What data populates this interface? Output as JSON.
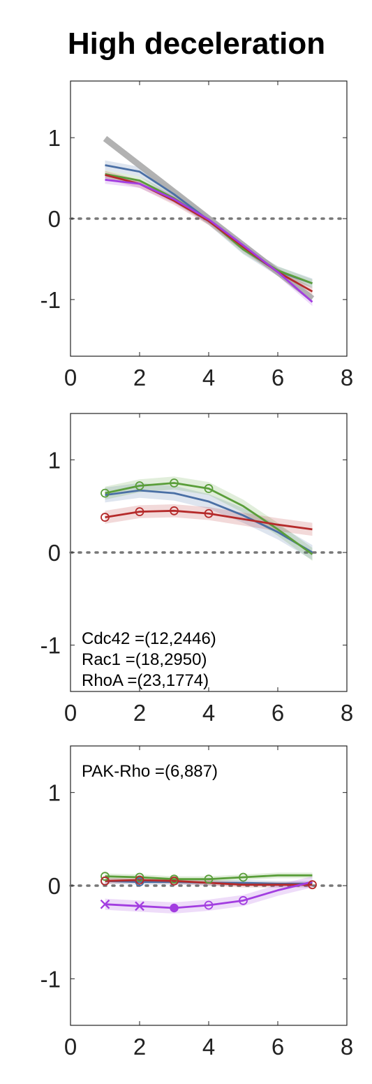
{
  "title": "High deceleration",
  "colors": {
    "gray": "#aaaaaa",
    "blue": "#4a6fa5",
    "green": "#5a9e3a",
    "red": "#b52a2a",
    "purple": "#a23de0",
    "zeroline": "#777777"
  },
  "chart_data": [
    {
      "type": "line",
      "xlim": [
        0,
        8
      ],
      "ylim": [
        -1.7,
        1.7
      ],
      "xticks": [
        "0",
        "2",
        "4",
        "6",
        "8"
      ],
      "yticks": [
        "1",
        "0",
        "-1"
      ],
      "annotations": [],
      "series": [
        {
          "color": "gray",
          "x": [
            1,
            2,
            3,
            4,
            5,
            6,
            7
          ],
          "values": [
            0.99,
            0.66,
            0.33,
            0.0,
            -0.33,
            -0.66,
            -0.99
          ],
          "band": 0.0,
          "thick": true
        },
        {
          "color": "blue",
          "x": [
            1,
            2,
            3,
            4,
            5,
            6,
            7
          ],
          "values": [
            0.66,
            0.58,
            0.3,
            -0.02,
            -0.38,
            -0.65,
            -0.8
          ],
          "band": 0.06
        },
        {
          "color": "green",
          "x": [
            1,
            2,
            3,
            4,
            5,
            6,
            7
          ],
          "values": [
            0.55,
            0.47,
            0.25,
            -0.02,
            -0.38,
            -0.64,
            -0.8
          ],
          "band": 0.05
        },
        {
          "color": "red",
          "x": [
            1,
            2,
            3,
            4,
            5,
            6,
            7
          ],
          "values": [
            0.54,
            0.43,
            0.22,
            -0.03,
            -0.35,
            -0.66,
            -0.9
          ],
          "band": 0.05
        },
        {
          "color": "purple",
          "x": [
            1,
            2,
            3,
            4,
            5,
            6,
            7
          ],
          "values": [
            0.48,
            0.43,
            0.24,
            -0.01,
            -0.33,
            -0.66,
            -1.03
          ],
          "band": 0.05
        }
      ]
    },
    {
      "type": "line",
      "xlim": [
        0,
        8
      ],
      "ylim": [
        -1.5,
        1.5
      ],
      "xticks": [
        "0",
        "2",
        "4",
        "6",
        "8"
      ],
      "yticks": [
        "1",
        "0",
        "-1"
      ],
      "annotations": [
        "Cdc42 =(12,2446)",
        "Rac1 =(18,2950)",
        "RhoA =(23,1774)"
      ],
      "series": [
        {
          "color": "blue",
          "x": [
            1,
            2,
            3,
            4,
            5,
            6,
            7
          ],
          "values": [
            0.62,
            0.67,
            0.64,
            0.55,
            0.4,
            0.22,
            0.0
          ],
          "band": 0.08
        },
        {
          "color": "green",
          "x": [
            1,
            2,
            3,
            4,
            5,
            6,
            7
          ],
          "values": [
            0.64,
            0.72,
            0.75,
            0.69,
            0.5,
            0.25,
            -0.02
          ],
          "band": 0.07,
          "markers": {
            "x": [
              1,
              2,
              3,
              4
            ],
            "symbol": "circle"
          }
        },
        {
          "color": "red",
          "x": [
            1,
            2,
            3,
            4,
            5,
            6,
            7
          ],
          "values": [
            0.38,
            0.44,
            0.45,
            0.42,
            0.36,
            0.3,
            0.25
          ],
          "band": 0.07,
          "markers": {
            "x": [
              1,
              2,
              3,
              4
            ],
            "symbol": "circle"
          }
        }
      ]
    },
    {
      "type": "line",
      "xlim": [
        0,
        8
      ],
      "ylim": [
        -1.5,
        1.5
      ],
      "xticks": [
        "0",
        "2",
        "4",
        "6",
        "8"
      ],
      "yticks": [
        "1",
        "0",
        "-1"
      ],
      "annotations": [
        "PAK-Rho =(6,887)"
      ],
      "series": [
        {
          "color": "blue",
          "x": [
            1,
            2,
            3,
            4,
            5,
            6,
            7
          ],
          "values": [
            0.05,
            0.04,
            0.04,
            0.03,
            0.03,
            0.02,
            0.02
          ],
          "band": 0.03,
          "markers": {
            "x": [
              1,
              2
            ],
            "symbol": "circle"
          }
        },
        {
          "color": "green",
          "x": [
            1,
            2,
            3,
            4,
            5,
            6,
            7
          ],
          "values": [
            0.1,
            0.09,
            0.07,
            0.07,
            0.09,
            0.11,
            0.11
          ],
          "band": 0.03,
          "markers": {
            "x": [
              1,
              2,
              3,
              4,
              5
            ],
            "symbol": "circle"
          }
        },
        {
          "color": "red",
          "x": [
            1,
            2,
            3,
            4,
            5,
            6,
            7
          ],
          "values": [
            0.05,
            0.06,
            0.05,
            0.03,
            0.01,
            0.01,
            0.01
          ],
          "band": 0.03,
          "markers": {
            "x": [
              1,
              2,
              3,
              7
            ],
            "symbol": "circle"
          }
        },
        {
          "color": "purple",
          "x": [
            1,
            2,
            3,
            4,
            5,
            6,
            7
          ],
          "values": [
            -0.2,
            -0.22,
            -0.24,
            -0.21,
            -0.16,
            -0.05,
            0.04
          ],
          "band": 0.06,
          "markers": {
            "x": [
              1,
              2,
              3,
              4,
              5
            ],
            "symbols": [
              "x",
              "x",
              "dot",
              "circle",
              "circle"
            ]
          }
        }
      ]
    }
  ]
}
